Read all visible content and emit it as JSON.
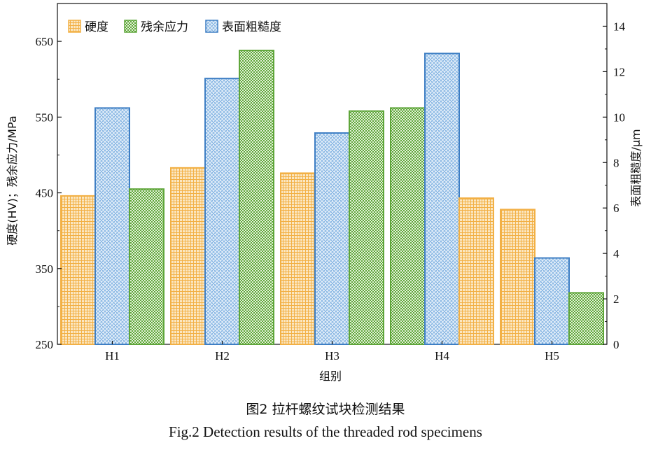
{
  "chart_data": {
    "type": "bar",
    "categories": [
      "H1",
      "H2",
      "H3",
      "H4",
      "H5"
    ],
    "xlabel": "组别",
    "ylabel_left": "硬度(HV)；残余应力/MPa",
    "ylabel_right": "表面粗糙度/μm",
    "ylim_left": [
      250,
      700
    ],
    "yticks_left": [
      "250",
      "350",
      "450",
      "550",
      "650"
    ],
    "ylim_right": [
      0,
      15
    ],
    "yticks_right": [
      "0",
      "2",
      "4",
      "6",
      "8",
      "10",
      "12",
      "14"
    ],
    "legend_position": "top-left",
    "series": [
      {
        "name": "硬度",
        "axis": "left",
        "color": "#f2b045",
        "pattern": "grid",
        "values": [
          446,
          483,
          476,
          443,
          428
        ]
      },
      {
        "name": "残余应力",
        "axis": "left",
        "color": "#5fa63a",
        "pattern": "dots",
        "values": [
          455,
          638,
          558,
          562,
          318
        ]
      },
      {
        "name": "表面粗糙度",
        "axis": "right",
        "color": "#3f7fc4",
        "pattern": "cross",
        "values": [
          10.4,
          11.7,
          9.3,
          12.8,
          3.8
        ]
      }
    ],
    "bar_order": [
      [
        "硬度",
        "表面粗糙度",
        "残余应力"
      ],
      [
        "硬度",
        "表面粗糙度",
        "残余应力"
      ],
      [
        "硬度",
        "表面粗糙度",
        "残余应力"
      ],
      [
        "残余应力",
        "表面粗糙度",
        "硬度"
      ],
      [
        "硬度",
        "表面粗糙度",
        "残余应力"
      ]
    ],
    "grid": false
  },
  "caption": {
    "cn": "图2  拉杆螺纹试块检测结果",
    "en": "Fig.2  Detection results of the threaded rod specimens"
  }
}
